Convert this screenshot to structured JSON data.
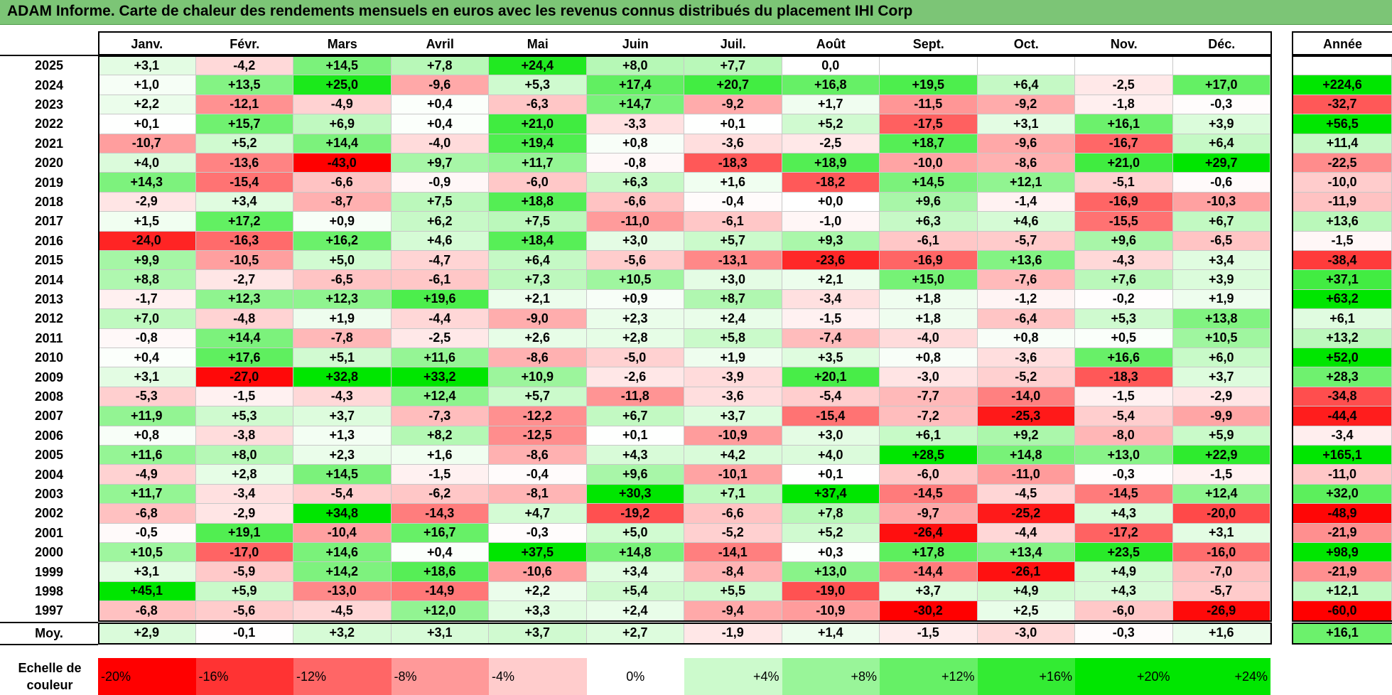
{
  "title": "ADAM Informe. Carte de chaleur des rendements mensuels en euros avec les revenus connus distribués du placement IHI Corp",
  "chart_data": {
    "type": "heatmap",
    "title": "ADAM Informe. Carte de chaleur des rendements mensuels en euros avec les revenus connus distribués du placement IHI Corp",
    "columns": [
      "Janv.",
      "Févr.",
      "Mars",
      "Avril",
      "Mai",
      "Juin",
      "Juil.",
      "Août",
      "Sept.",
      "Oct.",
      "Nov.",
      "Déc."
    ],
    "year_header": "Année",
    "rows": [
      {
        "label": "2025",
        "values": [
          "+3,1",
          "-4,2",
          "+14,5",
          "+7,8",
          "+24,4",
          "+8,0",
          "+7,7",
          "0,0",
          "",
          "",
          "",
          ""
        ],
        "year": ""
      },
      {
        "label": "2024",
        "values": [
          "+1,0",
          "+13,5",
          "+25,0",
          "-9,6",
          "+5,3",
          "+17,4",
          "+20,7",
          "+16,8",
          "+19,5",
          "+6,4",
          "-2,5",
          "+17,0"
        ],
        "year": "+224,6"
      },
      {
        "label": "2023",
        "values": [
          "+2,2",
          "-12,1",
          "-4,9",
          "+0,4",
          "-6,3",
          "+14,7",
          "-9,2",
          "+1,7",
          "-11,5",
          "-9,2",
          "-1,8",
          "-0,3"
        ],
        "year": "-32,7"
      },
      {
        "label": "2022",
        "values": [
          "+0,1",
          "+15,7",
          "+6,9",
          "+0,4",
          "+21,0",
          "-3,3",
          "+0,1",
          "+5,2",
          "-17,5",
          "+3,1",
          "+16,1",
          "+3,9"
        ],
        "year": "+56,5"
      },
      {
        "label": "2021",
        "values": [
          "-10,7",
          "+5,2",
          "+14,4",
          "-4,0",
          "+19,4",
          "+0,8",
          "-3,6",
          "-2,5",
          "+18,7",
          "-9,6",
          "-16,7",
          "+6,4"
        ],
        "year": "+11,4"
      },
      {
        "label": "2020",
        "values": [
          "+4,0",
          "-13,6",
          "-43,0",
          "+9,7",
          "+11,7",
          "-0,8",
          "-18,3",
          "+18,9",
          "-10,0",
          "-8,6",
          "+21,0",
          "+29,7"
        ],
        "year": "-22,5"
      },
      {
        "label": "2019",
        "values": [
          "+14,3",
          "-15,4",
          "-6,6",
          "-0,9",
          "-6,0",
          "+6,3",
          "+1,6",
          "-18,2",
          "+14,5",
          "+12,1",
          "-5,1",
          "-0,6"
        ],
        "year": "-10,0"
      },
      {
        "label": "2018",
        "values": [
          "-2,9",
          "+3,4",
          "-8,7",
          "+7,5",
          "+18,8",
          "-6,6",
          "-0,4",
          "+0,0",
          "+9,6",
          "-1,4",
          "-16,9",
          "-10,3"
        ],
        "year": "-11,9"
      },
      {
        "label": "2017",
        "values": [
          "+1,5",
          "+17,2",
          "+0,9",
          "+6,2",
          "+7,5",
          "-11,0",
          "-6,1",
          "-1,0",
          "+6,3",
          "+4,6",
          "-15,5",
          "+6,7"
        ],
        "year": "+13,6"
      },
      {
        "label": "2016",
        "values": [
          "-24,0",
          "-16,3",
          "+16,2",
          "+4,6",
          "+18,4",
          "+3,0",
          "+5,7",
          "+9,3",
          "-6,1",
          "-5,7",
          "+9,6",
          "-6,5"
        ],
        "year": "-1,5"
      },
      {
        "label": "2015",
        "values": [
          "+9,9",
          "-10,5",
          "+5,0",
          "-4,7",
          "+6,4",
          "-5,6",
          "-13,1",
          "-23,6",
          "-16,9",
          "+13,6",
          "-4,3",
          "+3,4"
        ],
        "year": "-38,4"
      },
      {
        "label": "2014",
        "values": [
          "+8,8",
          "-2,7",
          "-6,5",
          "-6,1",
          "+7,3",
          "+10,5",
          "+3,0",
          "+2,1",
          "+15,0",
          "-7,6",
          "+7,6",
          "+3,9"
        ],
        "year": "+37,1"
      },
      {
        "label": "2013",
        "values": [
          "-1,7",
          "+12,3",
          "+12,3",
          "+19,6",
          "+2,1",
          "+0,9",
          "+8,7",
          "-3,4",
          "+1,8",
          "-1,2",
          "-0,2",
          "+1,9"
        ],
        "year": "+63,2"
      },
      {
        "label": "2012",
        "values": [
          "+7,0",
          "-4,8",
          "+1,9",
          "-4,4",
          "-9,0",
          "+2,3",
          "+2,4",
          "-1,5",
          "+1,8",
          "-6,4",
          "+5,3",
          "+13,8"
        ],
        "year": "+6,1"
      },
      {
        "label": "2011",
        "values": [
          "-0,8",
          "+14,4",
          "-7,8",
          "-2,5",
          "+2,6",
          "+2,8",
          "+5,8",
          "-7,4",
          "-4,0",
          "+0,8",
          "+0,5",
          "+10,5"
        ],
        "year": "+13,2"
      },
      {
        "label": "2010",
        "values": [
          "+0,4",
          "+17,6",
          "+5,1",
          "+11,6",
          "-8,6",
          "-5,0",
          "+1,9",
          "+3,5",
          "+0,8",
          "-3,6",
          "+16,6",
          "+6,0"
        ],
        "year": "+52,0"
      },
      {
        "label": "2009",
        "values": [
          "+3,1",
          "-27,0",
          "+32,8",
          "+33,2",
          "+10,9",
          "-2,6",
          "-3,9",
          "+20,1",
          "-3,0",
          "-5,2",
          "-18,3",
          "+3,7"
        ],
        "year": "+28,3"
      },
      {
        "label": "2008",
        "values": [
          "-5,3",
          "-1,5",
          "-4,3",
          "+12,4",
          "+5,7",
          "-11,8",
          "-3,6",
          "-5,4",
          "-7,7",
          "-14,0",
          "-1,5",
          "-2,9"
        ],
        "year": "-34,8"
      },
      {
        "label": "2007",
        "values": [
          "+11,9",
          "+5,3",
          "+3,7",
          "-7,3",
          "-12,2",
          "+6,7",
          "+3,7",
          "-15,4",
          "-7,2",
          "-25,3",
          "-5,4",
          "-9,9"
        ],
        "year": "-44,4"
      },
      {
        "label": "2006",
        "values": [
          "+0,8",
          "-3,8",
          "+1,3",
          "+8,2",
          "-12,5",
          "+0,1",
          "-10,9",
          "+3,0",
          "+6,1",
          "+9,2",
          "-8,0",
          "+5,9"
        ],
        "year": "-3,4"
      },
      {
        "label": "2005",
        "values": [
          "+11,6",
          "+8,0",
          "+2,3",
          "+1,6",
          "-8,6",
          "+4,3",
          "+4,2",
          "+4,0",
          "+28,5",
          "+14,8",
          "+13,0",
          "+22,9"
        ],
        "year": "+165,1"
      },
      {
        "label": "2004",
        "values": [
          "-4,9",
          "+2,8",
          "+14,5",
          "-1,5",
          "-0,4",
          "+9,6",
          "-10,1",
          "+0,1",
          "-6,0",
          "-11,0",
          "-0,3",
          "-1,5"
        ],
        "year": "-11,0"
      },
      {
        "label": "2003",
        "values": [
          "+11,7",
          "-3,4",
          "-5,4",
          "-6,2",
          "-8,1",
          "+30,3",
          "+7,1",
          "+37,4",
          "-14,5",
          "-4,5",
          "-14,5",
          "+12,4"
        ],
        "year": "+32,0"
      },
      {
        "label": "2002",
        "values": [
          "-6,8",
          "-2,9",
          "+34,8",
          "-14,3",
          "+4,7",
          "-19,2",
          "-6,6",
          "+7,8",
          "-9,7",
          "-25,2",
          "+4,3",
          "-20,0"
        ],
        "year": "-48,9"
      },
      {
        "label": "2001",
        "values": [
          "-0,5",
          "+19,1",
          "-10,4",
          "+16,7",
          "-0,3",
          "+5,0",
          "-5,2",
          "+5,2",
          "-26,4",
          "-4,4",
          "-17,2",
          "+3,1"
        ],
        "year": "-21,9"
      },
      {
        "label": "2000",
        "values": [
          "+10,5",
          "-17,0",
          "+14,6",
          "+0,4",
          "+37,5",
          "+14,8",
          "-14,1",
          "+0,3",
          "+17,8",
          "+13,4",
          "+23,5",
          "-16,0"
        ],
        "year": "+98,9"
      },
      {
        "label": "1999",
        "values": [
          "+3,1",
          "-5,9",
          "+14,2",
          "+18,6",
          "-10,6",
          "+3,4",
          "-8,4",
          "+13,0",
          "-14,4",
          "-26,1",
          "+4,9",
          "-7,0"
        ],
        "year": "-21,9"
      },
      {
        "label": "1998",
        "values": [
          "+45,1",
          "+5,9",
          "-13,0",
          "-14,9",
          "+2,2",
          "+5,4",
          "+5,5",
          "-19,0",
          "+3,7",
          "+4,9",
          "+4,3",
          "-5,7"
        ],
        "year": "+12,1"
      },
      {
        "label": "1997",
        "values": [
          "-6,8",
          "-5,6",
          "-4,5",
          "+12,0",
          "+3,3",
          "+2,4",
          "-9,4",
          "-10,9",
          "-30,2",
          "+2,5",
          "-6,0",
          "-26,9"
        ],
        "year": "-60,0"
      }
    ],
    "average": {
      "label": "Moy.",
      "values": [
        "+2,9",
        "-0,1",
        "+3,2",
        "+3,1",
        "+3,7",
        "+2,7",
        "-1,9",
        "+1,4",
        "-1,5",
        "-3,0",
        "-0,3",
        "+1,6"
      ],
      "year": "+16,1"
    },
    "color_scale": {
      "label": "Echelle de couleur",
      "steps": [
        "-20%",
        "-16%",
        "-12%",
        "-8%",
        "-4%",
        "0%",
        "+4%",
        "+8%",
        "+12%",
        "+16%",
        "+20%",
        "+24%"
      ],
      "negative_color": "#ff0000",
      "neutral_color": "#ffffff",
      "positive_color": "#00e600"
    }
  }
}
